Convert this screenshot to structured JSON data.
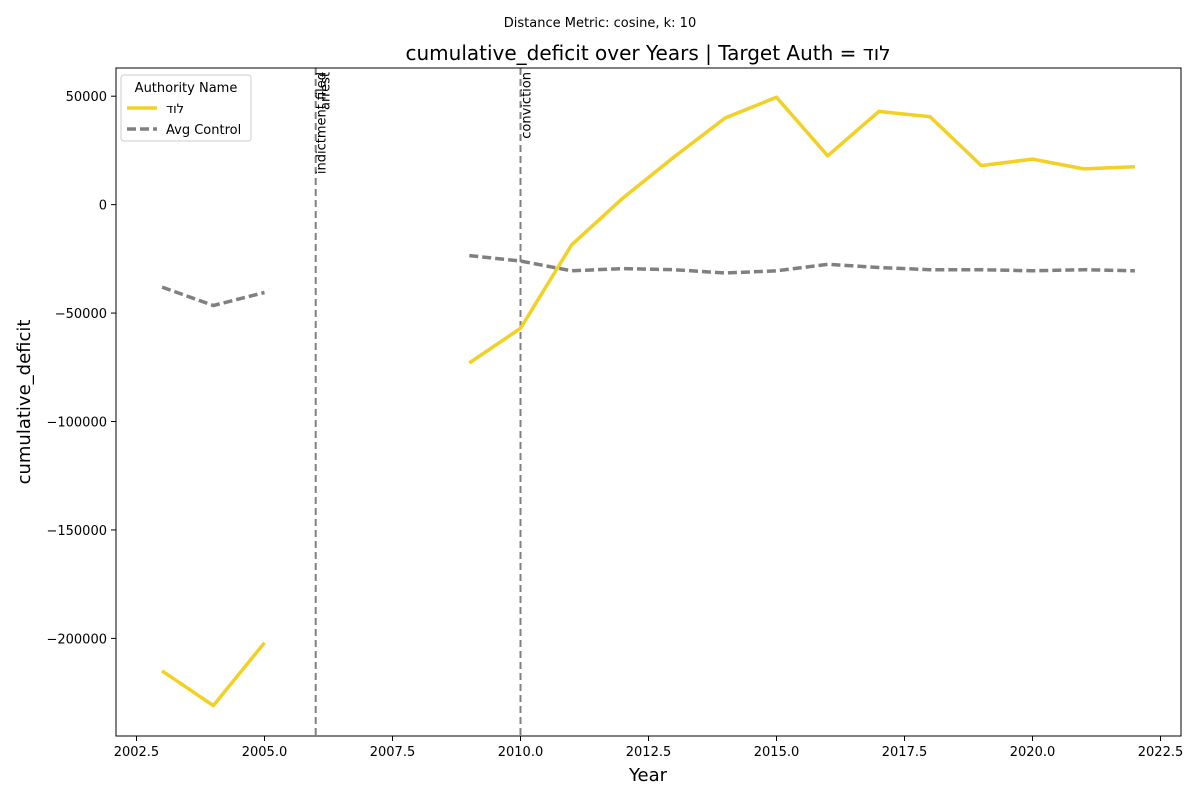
{
  "chart_data": {
    "type": "line",
    "suptitle": "Distance Metric: cosine, k: 10",
    "title": "cumulative_deficit over Years | Target Auth = לוד",
    "xlabel": "Year",
    "ylabel": "cumulative_deficit",
    "xlim": [
      2002.1,
      2022.9
    ],
    "ylim": [
      -245000,
      63000
    ],
    "xticks": [
      2002.5,
      2005.0,
      2007.5,
      2010.0,
      2012.5,
      2015.0,
      2017.5,
      2020.0,
      2022.5
    ],
    "xtick_labels": [
      "2002.5",
      "2005.0",
      "2007.5",
      "2010.0",
      "2012.5",
      "2015.0",
      "2017.5",
      "2020.0",
      "2022.5"
    ],
    "yticks": [
      50000,
      0,
      -50000,
      -100000,
      -150000,
      -200000
    ],
    "ytick_labels": [
      "50000",
      "0",
      "−50000",
      "−100000",
      "−150000",
      "−200000"
    ],
    "grid": false,
    "legend": {
      "title": "Authority Name",
      "placement": "top-left"
    },
    "series": [
      {
        "name": "לוד",
        "color": "#f2d024",
        "style": "solid",
        "segments": [
          [
            [
              2003,
              -215000
            ],
            [
              2004,
              -231000
            ],
            [
              2005,
              -202000
            ]
          ],
          [
            [
              2009,
              -73000
            ],
            [
              2010,
              -57000
            ],
            [
              2011,
              -18500
            ],
            [
              2012,
              3000
            ],
            [
              2013,
              22000
            ],
            [
              2014,
              40000
            ],
            [
              2015,
              49500
            ],
            [
              2016,
              22500
            ],
            [
              2017,
              43000
            ],
            [
              2018,
              40500
            ],
            [
              2019,
              18000
            ],
            [
              2020,
              21000
            ],
            [
              2021,
              16500
            ],
            [
              2022,
              17500
            ]
          ]
        ]
      },
      {
        "name": "Avg Control",
        "color": "#808080",
        "style": "dashed",
        "segments": [
          [
            [
              2003,
              -38000
            ],
            [
              2004,
              -46500
            ],
            [
              2005,
              -40500
            ]
          ],
          [
            [
              2009,
              -23500
            ],
            [
              2010,
              -26000
            ],
            [
              2011,
              -30500
            ],
            [
              2012,
              -29500
            ],
            [
              2013,
              -30000
            ],
            [
              2014,
              -31500
            ],
            [
              2015,
              -30500
            ],
            [
              2016,
              -27500
            ],
            [
              2017,
              -29000
            ],
            [
              2018,
              -30000
            ],
            [
              2019,
              -30000
            ],
            [
              2020,
              -30500
            ],
            [
              2021,
              -30000
            ],
            [
              2022,
              -30500
            ]
          ]
        ]
      }
    ],
    "events": [
      {
        "x": 2006,
        "label": "indictment filed"
      },
      {
        "x": 2006,
        "label": "arrest"
      },
      {
        "x": 2010,
        "label": "conviction"
      }
    ]
  }
}
